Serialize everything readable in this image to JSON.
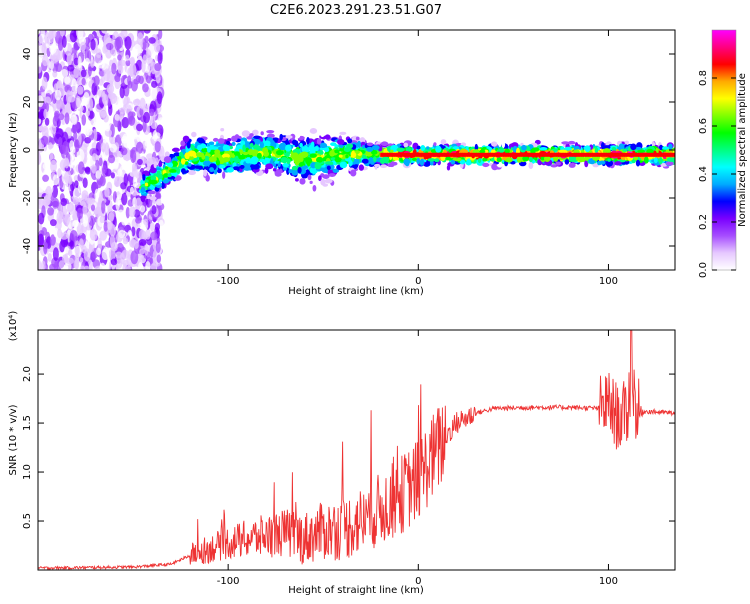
{
  "title": "C2E6.2023.291.23.51.G07",
  "chart_data": [
    {
      "type": "heatmap",
      "xlabel": "Height of straight line (km)",
      "ylabel": "Frequency (Hz)",
      "xlim": [
        -200,
        135
      ],
      "ylim": [
        -50,
        50
      ],
      "x_ticks": [
        -100,
        0,
        100
      ],
      "y_ticks": [
        -40,
        -20,
        0,
        20,
        40
      ],
      "colorbar": {
        "label": "Normalized spectral amplitude",
        "range": [
          0,
          1
        ],
        "ticks": [
          "0.0",
          "0.2",
          "0.4",
          "0.6",
          "0.8"
        ],
        "colors": [
          "#ffffff",
          "#e6c8ff",
          "#a64dff",
          "#7a00ff",
          "#0000ff",
          "#00aaff",
          "#00ffff",
          "#00ff80",
          "#00ff00",
          "#80ff00",
          "#ffff00",
          "#ffaa00",
          "#ff0000",
          "#ff0080",
          "#ff00ff"
        ]
      },
      "profile": {
        "x": [
          -145,
          -130,
          -120,
          -100,
          -80,
          -60,
          -40,
          -20,
          0,
          20,
          60,
          100,
          135
        ],
        "center_hz": [
          -15,
          -8,
          -2,
          -3,
          -1,
          -4,
          -2,
          -2,
          -2,
          -2,
          -2,
          -2,
          -2
        ],
        "spread_hz": [
          4,
          5,
          6,
          6,
          6,
          7,
          6,
          3,
          3,
          3,
          3,
          3,
          3
        ]
      }
    },
    {
      "type": "line",
      "xlabel": "Height of straight line (km)",
      "ylabel": "SNR (10 * v/v)",
      "y_multiplier": "(x10⁴)",
      "xlim": [
        -200,
        135
      ],
      "ylim": [
        0,
        2.45
      ],
      "x_ticks": [
        -100,
        0,
        100
      ],
      "y_ticks": [
        "0.5",
        "1.0",
        "1.5",
        "2.0"
      ],
      "series": [
        {
          "color": "#ee3333",
          "x": [
            -200,
            -150,
            -130,
            -120,
            -100,
            -80,
            -70,
            -60,
            -50,
            -40,
            -30,
            -20,
            -10,
            0,
            5,
            10,
            15,
            20,
            30,
            40,
            60,
            80,
            95,
            100,
            105,
            110,
            112,
            115,
            120,
            135
          ],
          "y": [
            0.02,
            0.03,
            0.06,
            0.15,
            0.28,
            0.35,
            0.38,
            0.32,
            0.4,
            0.42,
            0.5,
            0.62,
            0.75,
            0.92,
            1.08,
            1.22,
            1.38,
            1.5,
            1.6,
            1.65,
            1.66,
            1.66,
            1.65,
            1.7,
            1.55,
            1.6,
            2.0,
            1.6,
            1.62,
            1.6
          ]
        }
      ]
    }
  ]
}
